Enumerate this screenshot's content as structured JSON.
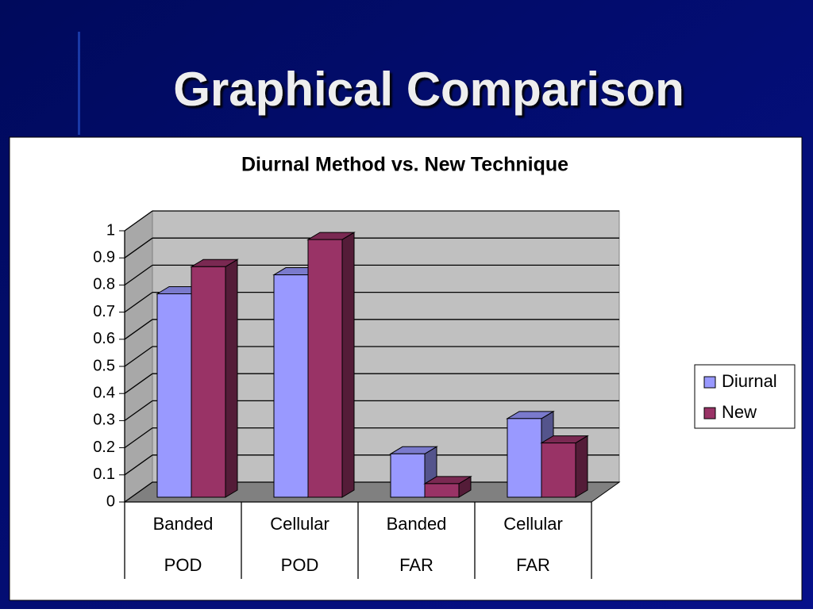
{
  "title": "Graphical Comparison",
  "chart_data": {
    "type": "bar3d",
    "title": "Diurnal Method vs. New Technique",
    "categories": [
      "Banded",
      "Cellular",
      "Banded",
      "Cellular"
    ],
    "subcategories": [
      "POD",
      "POD",
      "FAR",
      "FAR"
    ],
    "series": [
      {
        "name": "Diurnal",
        "color": "#9999ff",
        "values": [
          0.75,
          0.82,
          0.16,
          0.29
        ]
      },
      {
        "name": "New",
        "color": "#993366",
        "values": [
          0.85,
          0.95,
          0.05,
          0.2
        ]
      }
    ],
    "ylim": [
      0,
      1
    ],
    "yticks": [
      0,
      0.1,
      0.2,
      0.3,
      0.4,
      0.5,
      0.6,
      0.7,
      0.8,
      0.9,
      1
    ],
    "grid": true,
    "legend": "right"
  }
}
